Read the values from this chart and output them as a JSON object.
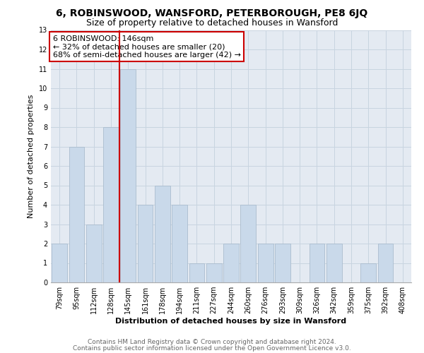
{
  "title1": "6, ROBINSWOOD, WANSFORD, PETERBOROUGH, PE8 6JQ",
  "title2": "Size of property relative to detached houses in Wansford",
  "xlabel": "Distribution of detached houses by size in Wansford",
  "ylabel": "Number of detached properties",
  "categories": [
    "79sqm",
    "95sqm",
    "112sqm",
    "128sqm",
    "145sqm",
    "161sqm",
    "178sqm",
    "194sqm",
    "211sqm",
    "227sqm",
    "244sqm",
    "260sqm",
    "276sqm",
    "293sqm",
    "309sqm",
    "326sqm",
    "342sqm",
    "359sqm",
    "375sqm",
    "392sqm",
    "408sqm"
  ],
  "values": [
    2,
    7,
    3,
    8,
    11,
    4,
    5,
    4,
    1,
    1,
    2,
    4,
    2,
    2,
    0,
    2,
    2,
    0,
    1,
    2,
    0
  ],
  "bar_color": "#c9d9ea",
  "bar_edgecolor": "#aabcce",
  "vline_x": 3.5,
  "vline_color": "#cc0000",
  "annotation_lines": [
    "6 ROBINSWOOD: 146sqm",
    "← 32% of detached houses are smaller (20)",
    "68% of semi-detached houses are larger (42) →"
  ],
  "annotation_box_edgecolor": "#cc0000",
  "annotation_box_facecolor": "white",
  "grid_color": "#c8d4e0",
  "background_color": "#e4eaf2",
  "ylim": [
    0,
    13
  ],
  "yticks": [
    0,
    1,
    2,
    3,
    4,
    5,
    6,
    7,
    8,
    9,
    10,
    11,
    12,
    13
  ],
  "footer1": "Contains HM Land Registry data © Crown copyright and database right 2024.",
  "footer2": "Contains public sector information licensed under the Open Government Licence v3.0.",
  "title1_fontsize": 10,
  "title2_fontsize": 9,
  "xlabel_fontsize": 8,
  "ylabel_fontsize": 8,
  "tick_fontsize": 7,
  "annotation_fontsize": 8,
  "footer_fontsize": 6.5
}
